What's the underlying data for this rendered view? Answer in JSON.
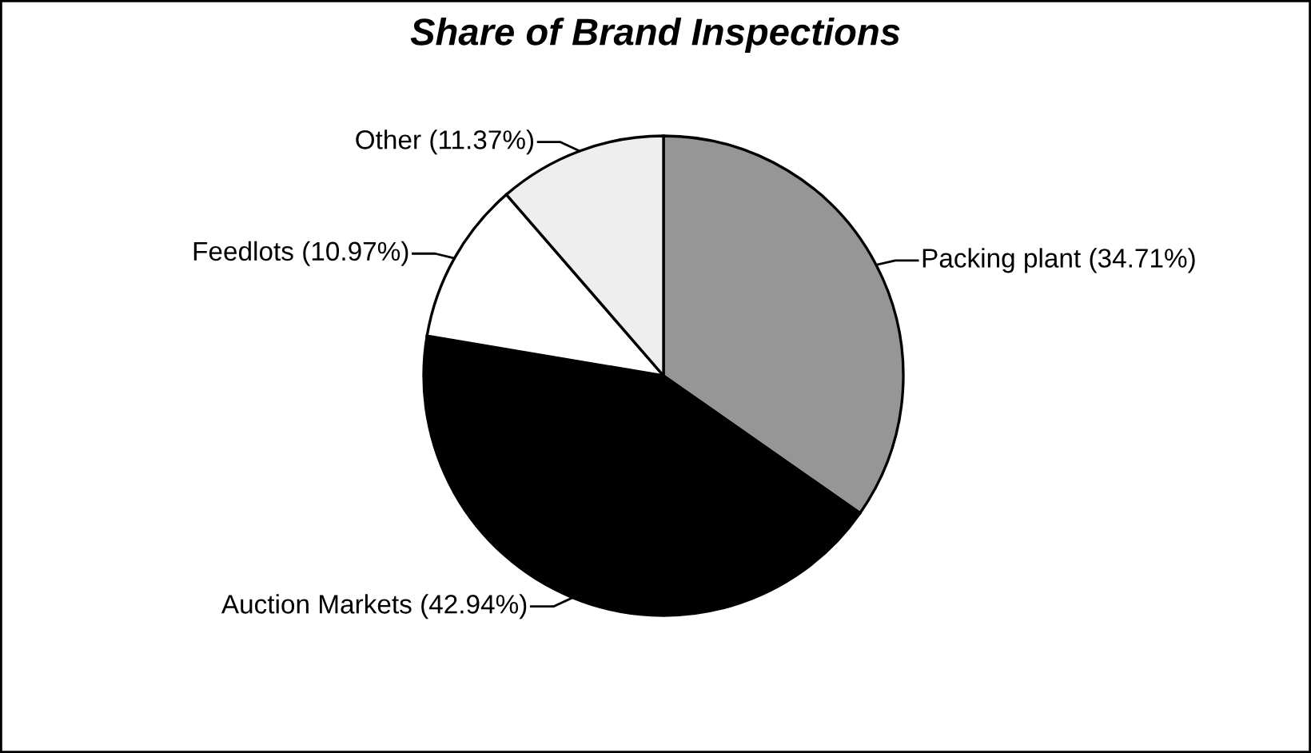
{
  "chart_data": {
    "type": "pie",
    "title": "Share of Brand Inspections",
    "categories": [
      "Packing plant",
      "Auction Markets",
      "Feedlots",
      "Other"
    ],
    "values": [
      34.71,
      42.94,
      10.97,
      11.37
    ],
    "value_labels": [
      "(34.71%)",
      "(42.94%)",
      "(10.97%)",
      "(11.37%)"
    ],
    "colors": [
      "#969696",
      "#000000",
      "#ffffff",
      "#eeeeee"
    ],
    "legend": false
  }
}
